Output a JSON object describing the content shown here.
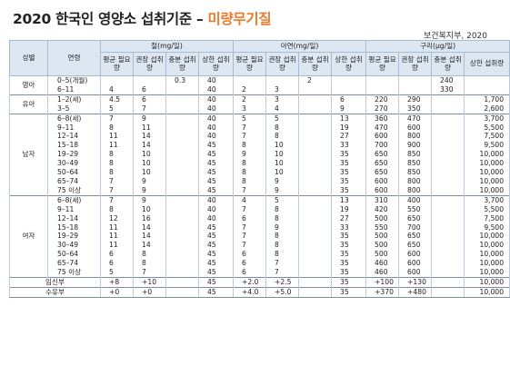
{
  "title": {
    "main": "2020 한국인 영양소 섭취기준",
    "dash": "–",
    "accent": "미량무기질"
  },
  "source": "보건복지부, 2020",
  "header": {
    "sex": "성별",
    "age": "연령",
    "groups": [
      "철(mg/일)",
      "아연(mg/일)",
      "구리(μg/일)"
    ],
    "sub": [
      "평균 필요량",
      "권장 섭취량",
      "충분 섭취량",
      "상한 섭취량"
    ]
  },
  "rows": [
    {
      "sex": "영아",
      "ages": [
        "0–5(개월)",
        "6–11"
      ],
      "cols": [
        [
          "",
          "4"
        ],
        [
          "",
          "6"
        ],
        [
          "0.3",
          ""
        ],
        [
          "40",
          "40"
        ],
        [
          "",
          "2"
        ],
        [
          "",
          "3"
        ],
        [
          "2",
          ""
        ],
        [
          "",
          ""
        ],
        [
          "",
          ""
        ],
        [
          "",
          ""
        ],
        [
          "240",
          "330"
        ],
        [
          "",
          ""
        ]
      ]
    },
    {
      "sex": "유아",
      "ages": [
        "1–2(세)",
        "3–5"
      ],
      "cols": [
        [
          "4.5",
          "5"
        ],
        [
          "6",
          "7"
        ],
        [
          "",
          ""
        ],
        [
          "40",
          "40"
        ],
        [
          "2",
          "3"
        ],
        [
          "3",
          "4"
        ],
        [
          "",
          ""
        ],
        [
          "6",
          "9"
        ],
        [
          "220",
          "270"
        ],
        [
          "290",
          "350"
        ],
        [
          "",
          ""
        ],
        [
          "1,700",
          "2,600"
        ]
      ]
    },
    {
      "sex": "남자",
      "ages": [
        "6–8(세)",
        "9–11",
        "12–14",
        "15–18",
        "19–29",
        "30–49",
        "50–64",
        "65–74",
        "75 이상"
      ],
      "cols": [
        [
          "7",
          "8",
          "11",
          "11",
          "8",
          "8",
          "8",
          "7",
          "7"
        ],
        [
          "9",
          "11",
          "14",
          "14",
          "10",
          "10",
          "10",
          "9",
          "9"
        ],
        [
          "",
          "",
          "",
          "",
          "",
          "",
          "",
          "",
          ""
        ],
        [
          "40",
          "40",
          "40",
          "45",
          "45",
          "45",
          "45",
          "45",
          "45"
        ],
        [
          "5",
          "7",
          "7",
          "8",
          "9",
          "8",
          "8",
          "8",
          "7"
        ],
        [
          "5",
          "8",
          "8",
          "10",
          "10",
          "10",
          "10",
          "9",
          "9"
        ],
        [
          "",
          "",
          "",
          "",
          "",
          "",
          "",
          "",
          ""
        ],
        [
          "13",
          "19",
          "27",
          "33",
          "35",
          "35",
          "35",
          "35",
          "35"
        ],
        [
          "360",
          "470",
          "600",
          "700",
          "650",
          "650",
          "650",
          "600",
          "600"
        ],
        [
          "470",
          "600",
          "800",
          "900",
          "850",
          "850",
          "850",
          "800",
          "800"
        ],
        [
          "",
          "",
          "",
          "",
          "",
          "",
          "",
          "",
          ""
        ],
        [
          "3,700",
          "5,500",
          "7,500",
          "9,500",
          "10,000",
          "10,000",
          "10,000",
          "10,000",
          "10,000"
        ]
      ]
    },
    {
      "sex": "여자",
      "ages": [
        "6–8(세)",
        "9–11",
        "12–14",
        "15–18",
        "19–29",
        "30–49",
        "50–64",
        "65–74",
        "75 이상"
      ],
      "cols": [
        [
          "7",
          "8",
          "12",
          "11",
          "11",
          "11",
          "6",
          "6",
          "5"
        ],
        [
          "9",
          "10",
          "16",
          "14",
          "14",
          "14",
          "8",
          "8",
          "7"
        ],
        [
          "",
          "",
          "",
          "",
          "",
          "",
          "",
          "",
          ""
        ],
        [
          "40",
          "40",
          "40",
          "45",
          "45",
          "45",
          "45",
          "45",
          "45"
        ],
        [
          "4",
          "7",
          "6",
          "7",
          "7",
          "7",
          "6",
          "6",
          "6"
        ],
        [
          "5",
          "8",
          "8",
          "9",
          "8",
          "8",
          "8",
          "7",
          "7"
        ],
        [
          "",
          "",
          "",
          "",
          "",
          "",
          "",
          "",
          ""
        ],
        [
          "13",
          "19",
          "27",
          "33",
          "35",
          "35",
          "35",
          "35",
          "35"
        ],
        [
          "310",
          "420",
          "500",
          "550",
          "500",
          "500",
          "500",
          "460",
          "460"
        ],
        [
          "400",
          "550",
          "650",
          "700",
          "650",
          "650",
          "600",
          "600",
          "600"
        ],
        [
          "",
          "",
          "",
          "",
          "",
          "",
          "",
          "",
          ""
        ],
        [
          "3,700",
          "5,500",
          "7,500",
          "9,500",
          "10,000",
          "10,000",
          "10,000",
          "10,000",
          "10,000"
        ]
      ]
    },
    {
      "label": "임신부",
      "cols": [
        "+8",
        "+10",
        "",
        "45",
        "+2.0",
        "+2.5",
        "",
        "35",
        "+100",
        "+130",
        "",
        "10,000"
      ]
    },
    {
      "label": "수유부",
      "cols": [
        "+0",
        "+0",
        "",
        "45",
        "+4.0",
        "+5.0",
        "",
        "35",
        "+370",
        "+480",
        "",
        "10,000"
      ]
    }
  ]
}
